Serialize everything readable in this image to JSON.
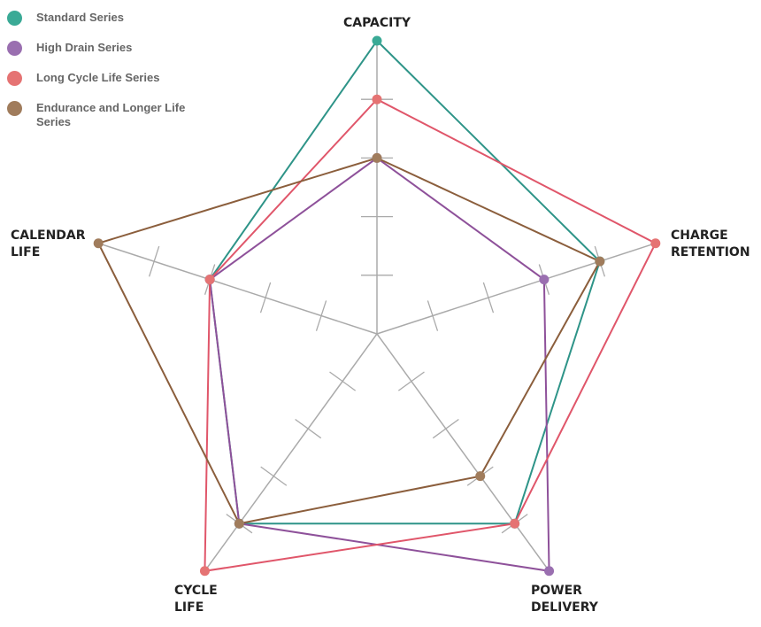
{
  "chart_data": {
    "type": "radar",
    "axes": [
      "CAPACITY",
      "CHARGE RETENTION",
      "POWER DELIVERY",
      "CYCLE LIFE",
      "CALENDAR LIFE"
    ],
    "axis_label_lines": [
      [
        "CAPACITY"
      ],
      [
        "CHARGE",
        "RETENTION"
      ],
      [
        "POWER",
        "DELIVERY"
      ],
      [
        "CYCLE",
        "LIFE"
      ],
      [
        "CALENDAR",
        "LIFE"
      ]
    ],
    "range": [
      0,
      5
    ],
    "ticks": [
      1,
      2,
      3,
      4
    ],
    "legend_position": "top-left",
    "series": [
      {
        "name": "Standard Series",
        "values": [
          5,
          4,
          4,
          4,
          3
        ],
        "color": "#3aaa96",
        "line_color": "#2e9488"
      },
      {
        "name": "High Drain Series",
        "values": [
          3,
          3,
          5,
          4,
          3
        ],
        "color": "#9a6fb0",
        "line_color": "#8e519a"
      },
      {
        "name": "Long Cycle Life Series",
        "values": [
          4,
          5,
          4,
          5,
          3
        ],
        "color": "#e57373",
        "line_color": "#e0566a"
      },
      {
        "name": "Endurance and Longer Life Series",
        "values": [
          3,
          4,
          3,
          4,
          5
        ],
        "color": "#a07c5c",
        "line_color": "#8b5e3c"
      }
    ]
  }
}
